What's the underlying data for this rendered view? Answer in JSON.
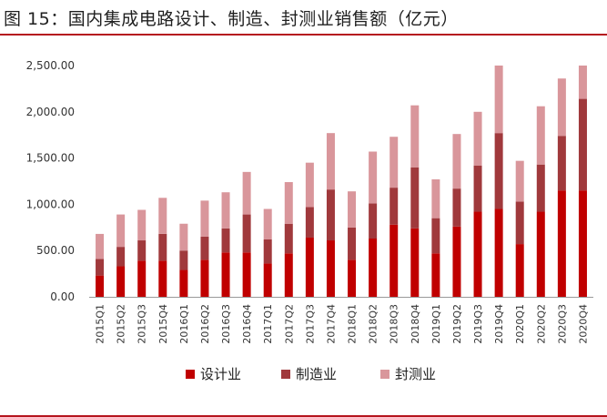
{
  "header": {
    "title": "图 15：国内集成电路设计、制造、封测业销售额（亿元）"
  },
  "chart_data": {
    "type": "bar",
    "stacked": true,
    "title": "图 15：国内集成电路设计、制造、封测业销售额（亿元）",
    "xlabel": "",
    "ylabel": "",
    "ylim": [
      0,
      2500
    ],
    "yticks": [
      "0.00",
      "500.00",
      "1,000.00",
      "1,500.00",
      "2,000.00",
      "2,500.00"
    ],
    "grid": false,
    "legend_position": "bottom",
    "categories": [
      "2015Q1",
      "2015Q2",
      "2015Q3",
      "2015Q4",
      "2016Q1",
      "2016Q2",
      "2016Q3",
      "2016Q4",
      "2017Q1",
      "2017Q2",
      "2017Q3",
      "2017Q4",
      "2018Q1",
      "2018Q2",
      "2018Q3",
      "2018Q4",
      "2019Q1",
      "2019Q2",
      "2019Q3",
      "2019Q4",
      "2020Q1",
      "2020Q2",
      "2020Q3",
      "2020Q4"
    ],
    "series": [
      {
        "name": "设计业",
        "color": "#c00000",
        "values": [
          230,
          330,
          390,
          390,
          290,
          400,
          480,
          480,
          360,
          470,
          640,
          610,
          400,
          630,
          780,
          740,
          470,
          760,
          920,
          950,
          570,
          920,
          1150,
          1150
        ]
      },
      {
        "name": "制造业",
        "color": "#a0393c",
        "values": [
          180,
          210,
          220,
          290,
          210,
          250,
          260,
          410,
          260,
          320,
          330,
          550,
          350,
          380,
          400,
          660,
          380,
          410,
          500,
          820,
          460,
          510,
          590,
          990
        ]
      },
      {
        "name": "封测业",
        "color": "#d9969b",
        "values": [
          270,
          350,
          330,
          390,
          290,
          390,
          390,
          460,
          330,
          450,
          480,
          610,
          390,
          560,
          550,
          670,
          420,
          590,
          580,
          730,
          440,
          630,
          620,
          360
        ]
      }
    ]
  }
}
